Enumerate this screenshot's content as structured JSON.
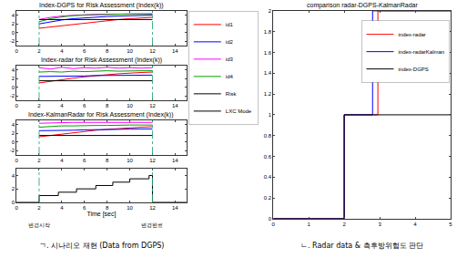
{
  "captions": [
    "ㄱ. 시나리오 재현 (Data from DGPS)",
    "ㄴ. Radar data & 측후방위험도 판단"
  ],
  "chart_data": [
    {
      "type": "line",
      "title": "Index-DGPS for Risk Assessment (Index(k))",
      "xlim": [
        0,
        15
      ],
      "xticks": [
        0,
        2,
        4,
        6,
        8,
        10,
        12,
        14
      ],
      "ylim": [
        -3,
        5
      ],
      "yticks": [
        -2,
        0,
        2,
        4
      ],
      "grid": false,
      "legend": "right",
      "vlines": [
        2,
        12
      ],
      "x": [
        2,
        3,
        4,
        5,
        6,
        7,
        8,
        9,
        10,
        11,
        12
      ],
      "series": [
        {
          "name": "id1",
          "color": "#ff0000",
          "values": [
            1.0,
            1.3,
            1.6,
            1.9,
            2.2,
            2.5,
            2.8,
            3.0,
            3.2,
            3.4,
            3.5
          ]
        },
        {
          "name": "id2",
          "color": "#0000ff",
          "values": [
            2.0,
            2.5,
            2.9,
            3.2,
            3.4,
            3.6,
            3.7,
            3.8,
            3.9,
            3.9,
            4.0
          ]
        },
        {
          "name": "id3",
          "color": "#ff00ff",
          "values": [
            3.0,
            3.5,
            3.8,
            4.0,
            4.1,
            4.2,
            4.2,
            4.3,
            4.3,
            4.3,
            4.3
          ]
        },
        {
          "name": "id4",
          "color": "#00a000",
          "values": [
            2.5,
            3.2,
            3.6,
            3.9,
            4.0,
            4.1,
            4.2,
            4.2,
            4.3,
            4.3,
            4.3
          ]
        },
        {
          "name": "Risk",
          "color": "#000000",
          "values": [
            3.0,
            3.0,
            3.0,
            3.0,
            3.0,
            3.0,
            3.0,
            3.0,
            3.0,
            3.0,
            3.0
          ]
        }
      ]
    },
    {
      "type": "line",
      "title": "Index-radar for Risk Assessment (Index(k))",
      "xlim": [
        0,
        15
      ],
      "xticks": [
        0,
        2,
        4,
        6,
        8,
        10,
        12,
        14
      ],
      "ylim": [
        -3,
        5
      ],
      "yticks": [
        -2,
        0,
        2,
        4
      ],
      "grid": false,
      "legend": "right",
      "vlines": [
        2,
        12
      ],
      "x": [
        2,
        3,
        4,
        5,
        6,
        7,
        8,
        9,
        10,
        11,
        12
      ],
      "series": [
        {
          "name": "id1",
          "color": "#ff0000",
          "values": [
            1.0,
            1.4,
            1.8,
            2.1,
            2.4,
            2.7,
            2.9,
            3.1,
            3.3,
            3.4,
            3.5
          ]
        },
        {
          "name": "id2",
          "color": "#0000ff",
          "values": [
            2.5,
            2.5,
            2.6,
            2.6,
            2.6,
            2.7,
            2.7,
            2.7,
            2.8,
            2.8,
            2.8
          ]
        },
        {
          "name": "id3",
          "color": "#ff00ff",
          "values": [
            4.5,
            4.2,
            4.6,
            4.3,
            4.5,
            4.4,
            4.6,
            4.4,
            4.5,
            4.4,
            4.5
          ]
        },
        {
          "name": "id4",
          "color": "#00a000",
          "values": [
            3.5,
            3.6,
            3.5,
            3.7,
            3.6,
            3.7,
            3.8,
            3.7,
            3.8,
            3.8,
            3.8
          ]
        },
        {
          "name": "Risk",
          "color": "#000000",
          "values": [
            1.5,
            1.5,
            1.5,
            1.5,
            1.5,
            1.5,
            1.5,
            1.5,
            1.5,
            1.5,
            1.5
          ]
        }
      ]
    },
    {
      "type": "line",
      "title": "Index-KalmanRadar for Risk Assessment (Index(k))",
      "xlim": [
        0,
        15
      ],
      "xticks": [
        0,
        2,
        4,
        6,
        8,
        10,
        12,
        14
      ],
      "ylim": [
        -3,
        5
      ],
      "yticks": [
        -2,
        0,
        2,
        4
      ],
      "grid": false,
      "legend": "right",
      "vlines": [
        2,
        12
      ],
      "x": [
        2,
        3,
        4,
        5,
        6,
        7,
        8,
        9,
        10,
        11,
        12
      ],
      "series": [
        {
          "name": "id1",
          "color": "#ff0000",
          "values": [
            1.2,
            1.5,
            1.9,
            2.2,
            2.5,
            2.7,
            2.9,
            3.1,
            3.3,
            3.4,
            3.5
          ]
        },
        {
          "name": "id2",
          "color": "#0000ff",
          "values": [
            2.6,
            2.6,
            2.7,
            2.7,
            2.8,
            2.8,
            2.9,
            2.9,
            3.0,
            3.0,
            3.0
          ]
        },
        {
          "name": "id3",
          "color": "#ff00ff",
          "values": [
            4.3,
            4.4,
            4.4,
            4.5,
            4.5,
            4.5,
            4.5,
            4.5,
            4.5,
            4.5,
            4.5
          ]
        },
        {
          "name": "id4",
          "color": "#00a000",
          "values": [
            3.4,
            3.6,
            3.7,
            3.7,
            3.8,
            3.8,
            3.8,
            3.9,
            3.9,
            3.9,
            3.9
          ]
        },
        {
          "name": "Risk",
          "color": "#000000",
          "values": [
            1.5,
            1.5,
            1.5,
            1.5,
            1.5,
            1.5,
            1.5,
            1.5,
            1.5,
            1.5,
            1.5
          ]
        }
      ]
    },
    {
      "type": "line",
      "x_label": "Time [sec]",
      "xlim": [
        0,
        15
      ],
      "xticks": [
        0,
        2,
        4,
        6,
        8,
        10,
        12,
        14
      ],
      "ylim": [
        0,
        5
      ],
      "yticks": [
        0,
        2,
        4
      ],
      "grid": false,
      "legend": "right",
      "vlines": [
        2,
        12
      ],
      "annotations": [
        {
          "x": 2,
          "text": "변경시작"
        },
        {
          "x": 12,
          "text": "변경완료"
        }
      ],
      "series": [
        {
          "name": "LXC Mode",
          "color": "#000000",
          "line_style": "step",
          "x": [
            0,
            2,
            3.7,
            5.3,
            7,
            8.5,
            10,
            11.7,
            12,
            15
          ],
          "values": [
            0,
            1,
            1.5,
            2,
            2.5,
            3,
            3.5,
            4,
            0,
            0
          ]
        }
      ]
    },
    {
      "type": "line",
      "title": "comparison radar-DGPS-KalmanRadar",
      "xlim": [
        0,
        5
      ],
      "xticks": [
        0,
        1,
        2,
        3,
        4,
        5
      ],
      "ylim": [
        0,
        2
      ],
      "yticks": [
        0,
        0.2,
        0.4,
        0.6,
        0.8,
        1,
        1.2,
        1.4,
        1.6,
        1.8,
        2
      ],
      "grid": false,
      "legend": "upper right",
      "series": [
        {
          "name": "index-radar",
          "color": "#ff0000",
          "x": [
            0,
            2,
            2,
            2.95,
            2.95,
            5
          ],
          "values": [
            0,
            0,
            1,
            1,
            2,
            2
          ]
        },
        {
          "name": "index-radarKalman",
          "color": "#0000ff",
          "x": [
            0,
            2,
            2,
            2.8,
            2.8,
            5
          ],
          "values": [
            0,
            0,
            1,
            1,
            2,
            2
          ]
        },
        {
          "name": "index-DGPS",
          "color": "#000000",
          "x": [
            0,
            2,
            2,
            5
          ],
          "values": [
            0,
            0,
            1,
            1
          ]
        }
      ]
    }
  ]
}
